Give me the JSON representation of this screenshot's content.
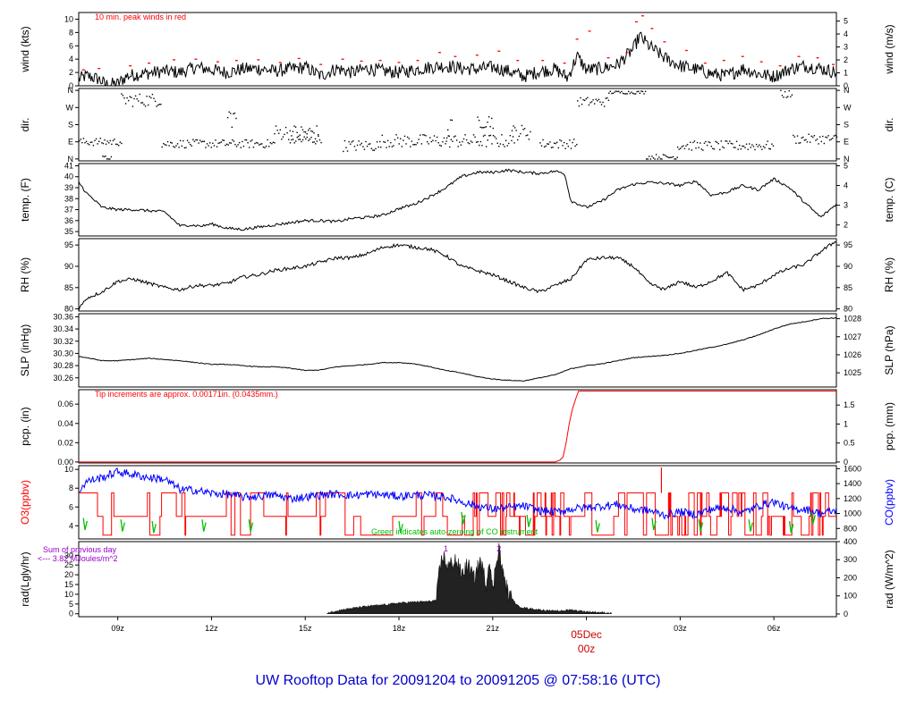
{
  "footer_title": "UW Rooftop Data for 20091204  to  20091205 @ 07:58:16  (UTC)",
  "colors": {
    "axis": "#000000",
    "peak": "#ff0000",
    "precip": "#ff0000",
    "o3": "#ff0000",
    "co": "#0000ff",
    "zero": "#00c000",
    "rad_note": "#9900cc",
    "footer": "#0000cc",
    "date_label": "#cc0000"
  },
  "chart_data": [
    {
      "type": "line",
      "name": "wind",
      "ylabel": "wind (kts)",
      "ylabel_right": "wind (m/s)",
      "ylim": [
        0,
        11
      ],
      "yticks": [
        0,
        2,
        4,
        6,
        8,
        10
      ],
      "yticks_right_values": [
        0,
        1,
        2,
        3,
        4,
        5
      ],
      "right_scale_factor": 1.9438,
      "annotation": "10 min. peak winds in red",
      "series_points": [
        [
          7.75,
          1.0
        ],
        [
          8.0,
          1.5
        ],
        [
          8.4,
          1.0
        ],
        [
          8.6,
          0.2
        ],
        [
          9.0,
          0.3
        ],
        [
          9.3,
          1.5
        ],
        [
          9.8,
          1.8
        ],
        [
          10.5,
          2.2
        ],
        [
          11.0,
          2.0
        ],
        [
          11.5,
          2.8
        ],
        [
          12.0,
          2.4
        ],
        [
          12.5,
          2.0
        ],
        [
          13.0,
          2.5
        ],
        [
          13.5,
          2.6
        ],
        [
          14.0,
          2.2
        ],
        [
          14.5,
          2.5
        ],
        [
          15.0,
          2.8
        ],
        [
          15.5,
          1.5
        ],
        [
          16.0,
          2.6
        ],
        [
          16.5,
          2.0
        ],
        [
          17.0,
          2.6
        ],
        [
          17.5,
          2.2
        ],
        [
          18.0,
          2.0
        ],
        [
          18.5,
          2.4
        ],
        [
          19.0,
          2.8
        ],
        [
          19.5,
          3.0
        ],
        [
          20.0,
          2.6
        ],
        [
          20.5,
          2.5
        ],
        [
          21.0,
          2.8
        ],
        [
          21.5,
          2.2
        ],
        [
          22.0,
          1.4
        ],
        [
          22.5,
          2.2
        ],
        [
          23.0,
          2.5
        ],
        [
          23.4,
          1.2
        ],
        [
          23.7,
          4.5
        ],
        [
          24.0,
          2.4
        ],
        [
          24.5,
          2.6
        ],
        [
          25.0,
          3.2
        ],
        [
          25.5,
          5.5
        ],
        [
          25.7,
          7.5
        ],
        [
          26.0,
          6.0
        ],
        [
          26.5,
          4.2
        ],
        [
          27.0,
          3.0
        ],
        [
          27.5,
          2.5
        ],
        [
          28.0,
          1.8
        ],
        [
          28.5,
          1.5
        ],
        [
          29.0,
          2.6
        ],
        [
          29.5,
          1.8
        ],
        [
          30.0,
          1.4
        ],
        [
          30.5,
          2.5
        ],
        [
          31.0,
          3.0
        ],
        [
          31.5,
          2.6
        ],
        [
          32.0,
          2.0
        ]
      ],
      "peak_points": [
        [
          7.9,
          2.4
        ],
        [
          8.4,
          2.6
        ],
        [
          9.4,
          3.0
        ],
        [
          10.0,
          3.4
        ],
        [
          10.8,
          3.9
        ],
        [
          11.5,
          4.0
        ],
        [
          12.2,
          3.6
        ],
        [
          12.8,
          3.8
        ],
        [
          13.5,
          3.9
        ],
        [
          14.2,
          3.5
        ],
        [
          14.8,
          4.1
        ],
        [
          15.5,
          3.2
        ],
        [
          16.2,
          4.0
        ],
        [
          16.8,
          3.7
        ],
        [
          17.4,
          3.8
        ],
        [
          18.0,
          3.5
        ],
        [
          18.6,
          3.8
        ],
        [
          19.3,
          5.0
        ],
        [
          19.8,
          4.4
        ],
        [
          20.5,
          4.6
        ],
        [
          21.2,
          5.2
        ],
        [
          21.8,
          3.8
        ],
        [
          22.6,
          3.8
        ],
        [
          23.3,
          3.4
        ],
        [
          23.7,
          7.0
        ],
        [
          24.1,
          8.2
        ],
        [
          24.7,
          4.2
        ],
        [
          25.3,
          5.0
        ],
        [
          25.6,
          9.6
        ],
        [
          25.8,
          10.5
        ],
        [
          26.1,
          8.6
        ],
        [
          26.5,
          6.6
        ],
        [
          27.2,
          5.3
        ],
        [
          27.8,
          3.4
        ],
        [
          28.4,
          3.8
        ],
        [
          29.0,
          4.4
        ],
        [
          29.6,
          3.6
        ],
        [
          30.2,
          3.0
        ],
        [
          30.8,
          4.4
        ],
        [
          31.4,
          4.2
        ],
        [
          31.9,
          3.2
        ]
      ]
    },
    {
      "type": "scatter",
      "name": "dir",
      "ylabel": "dir.",
      "ylabel_right": "dir.",
      "yticks_labels": [
        "N",
        "E",
        "S",
        "W",
        "N"
      ],
      "yticks_values": [
        0,
        90,
        180,
        270,
        360
      ],
      "ylim": [
        0,
        360
      ],
      "clusters": [
        [
          7.75,
          9.1,
          90,
          20
        ],
        [
          8.5,
          8.8,
          5,
          12
        ],
        [
          9.1,
          10.4,
          310,
          35
        ],
        [
          10.4,
          14.0,
          80,
          22
        ],
        [
          12.5,
          12.8,
          220,
          60
        ],
        [
          14.0,
          15.4,
          140,
          40
        ],
        [
          14.5,
          15.5,
          100,
          25
        ],
        [
          16.2,
          17.4,
          70,
          30
        ],
        [
          17.4,
          21.7,
          95,
          35
        ],
        [
          19.5,
          19.7,
          150,
          60
        ],
        [
          20.5,
          21.0,
          200,
          40
        ],
        [
          21.6,
          22.2,
          140,
          40
        ],
        [
          22.5,
          23.7,
          80,
          25
        ],
        [
          23.7,
          24.7,
          300,
          25
        ],
        [
          24.7,
          25.9,
          350,
          8
        ],
        [
          25.9,
          26.9,
          10,
          15
        ],
        [
          26.9,
          30.0,
          70,
          25
        ],
        [
          30.2,
          30.6,
          340,
          20
        ],
        [
          30.6,
          32.0,
          105,
          25
        ]
      ]
    },
    {
      "type": "line",
      "name": "temp",
      "ylabel": "temp. (F)",
      "ylabel_right": "temp. (C)",
      "ylim": [
        34.6,
        41.2
      ],
      "yticks": [
        35,
        36,
        37,
        38,
        39,
        40,
        41
      ],
      "yticks_right_values": [
        2,
        3,
        4,
        5
      ],
      "x": [
        7.75,
        8.0,
        8.5,
        9.0,
        9.5,
        10.0,
        10.5,
        11.0,
        11.3,
        11.7,
        12.0,
        12.5,
        13.0,
        13.5,
        14.0,
        14.5,
        15.0,
        15.5,
        16.0,
        16.5,
        17.0,
        17.5,
        18.0,
        18.5,
        19.0,
        19.5,
        20.0,
        20.5,
        21.0,
        21.5,
        22.0,
        22.5,
        23.0,
        23.3,
        23.5,
        24.0,
        24.5,
        25.0,
        25.5,
        26.0,
        26.5,
        27.0,
        27.5,
        28.0,
        28.5,
        29.0,
        29.5,
        30.0,
        30.5,
        31.0,
        31.5,
        32.0
      ],
      "y": [
        39.5,
        38.5,
        37.2,
        37.0,
        37.0,
        36.9,
        36.8,
        35.5,
        35.6,
        35.5,
        35.7,
        35.3,
        35.2,
        35.4,
        35.6,
        35.8,
        36.0,
        36.0,
        35.9,
        36.2,
        36.3,
        36.5,
        37.1,
        37.5,
        38.2,
        39.0,
        40.0,
        40.4,
        40.4,
        40.6,
        40.4,
        40.3,
        40.5,
        40.3,
        37.8,
        37.2,
        37.8,
        38.8,
        39.3,
        39.5,
        39.4,
        39.2,
        39.6,
        38.3,
        38.6,
        39.2,
        38.8,
        39.8,
        39.0,
        37.6,
        36.3,
        37.5
      ]
    },
    {
      "type": "line",
      "name": "rh",
      "ylabel": "RH (%)",
      "ylabel_right": "RH (%)",
      "ylim": [
        79.5,
        96.5
      ],
      "yticks": [
        80,
        85,
        90,
        95
      ],
      "yticks_right_values": [
        80,
        85,
        90,
        95
      ],
      "x": [
        7.75,
        8.0,
        8.5,
        9.0,
        9.5,
        10.0,
        10.5,
        11.0,
        11.5,
        12.0,
        12.5,
        13.0,
        13.5,
        14.0,
        14.5,
        15.0,
        15.5,
        16.0,
        16.5,
        17.0,
        17.5,
        18.0,
        18.5,
        19.0,
        19.5,
        20.0,
        20.5,
        21.0,
        21.5,
        22.0,
        22.5,
        23.0,
        23.5,
        24.0,
        24.5,
        25.0,
        25.5,
        26.0,
        26.5,
        27.0,
        27.5,
        28.0,
        28.5,
        29.0,
        29.5,
        30.0,
        30.5,
        31.0,
        31.5,
        32.0
      ],
      "y": [
        80.0,
        82.5,
        84.0,
        86.5,
        87.0,
        86.0,
        85.0,
        84.5,
        85.5,
        85.5,
        86.0,
        87.5,
        88.0,
        89.0,
        89.5,
        90.0,
        91.0,
        92.0,
        92.0,
        93.0,
        94.5,
        95.0,
        94.5,
        94.0,
        92.5,
        90.0,
        89.0,
        88.0,
        86.5,
        85.0,
        84.0,
        85.5,
        87.0,
        91.5,
        92.0,
        92.0,
        90.0,
        86.0,
        84.5,
        86.5,
        85.0,
        86.5,
        88.5,
        84.5,
        85.5,
        88.0,
        89.5,
        90.5,
        93.5,
        96.0
      ]
    },
    {
      "type": "line",
      "name": "slp",
      "ylabel": "SLP (inHg)",
      "ylabel_right": "SLP (hPa)",
      "ylim": [
        30.245,
        30.365
      ],
      "yticks": [
        30.26,
        30.28,
        30.3,
        30.32,
        30.34,
        30.36
      ],
      "yticks_right_values": [
        1025,
        1026,
        1027,
        1028
      ],
      "x": [
        7.75,
        8.0,
        8.5,
        9.0,
        9.5,
        10.0,
        10.5,
        11.0,
        11.5,
        12.0,
        12.5,
        13.0,
        13.5,
        14.0,
        14.5,
        15.0,
        15.5,
        16.0,
        16.5,
        17.0,
        17.5,
        18.0,
        18.5,
        19.0,
        19.5,
        20.0,
        20.5,
        21.0,
        21.5,
        22.0,
        22.5,
        23.0,
        23.5,
        24.0,
        24.5,
        25.0,
        25.5,
        26.0,
        26.5,
        27.0,
        27.5,
        28.0,
        28.5,
        29.0,
        29.5,
        30.0,
        30.5,
        31.0,
        31.5,
        32.0
      ],
      "y": [
        30.295,
        30.293,
        30.288,
        30.288,
        30.29,
        30.292,
        30.29,
        30.288,
        30.285,
        30.282,
        30.282,
        30.28,
        30.278,
        30.278,
        30.276,
        30.272,
        30.273,
        30.278,
        30.28,
        30.282,
        30.285,
        30.285,
        30.283,
        30.278,
        30.272,
        30.268,
        30.262,
        30.258,
        30.256,
        30.255,
        30.26,
        30.265,
        30.275,
        30.28,
        30.283,
        30.288,
        30.293,
        30.295,
        30.297,
        30.3,
        30.305,
        30.31,
        30.315,
        30.322,
        30.33,
        30.34,
        30.348,
        30.352,
        30.357,
        30.358
      ]
    },
    {
      "type": "line",
      "name": "pcp",
      "ylabel": "pcp. (in)",
      "ylabel_right": "pcp. (mm)",
      "ylim": [
        -0.001,
        0.075
      ],
      "yticks": [
        0,
        0.02,
        0.04,
        0.06
      ],
      "yticks_right_values": [
        0,
        0.5,
        1,
        1.5
      ],
      "annotation": "Tip increments are approx. 0.00171in. (0.0435mm.)",
      "x": [
        7.75,
        23.0,
        23.15,
        23.25,
        23.35,
        23.45,
        23.55,
        23.65,
        23.75,
        32.0
      ],
      "y": [
        0.0,
        0.0,
        0.002,
        0.005,
        0.02,
        0.04,
        0.055,
        0.065,
        0.0735,
        0.0735
      ]
    },
    {
      "type": "line",
      "name": "o3_co",
      "ylabel": "O3(ppbv)",
      "ylabel_right": "CO(ppbv)",
      "ylim": [
        2.6,
        10.4
      ],
      "yticks": [
        4,
        6,
        8,
        10
      ],
      "ylim_right": [
        660,
        1640
      ],
      "yticks_right_values": [
        800,
        1000,
        1200,
        1400,
        1600
      ],
      "annotation": "Green indicates auto-zeroing of CO instrument",
      "o3_levels": [
        3,
        5,
        7.5
      ],
      "o3_spike": [
        26.4,
        10.2
      ],
      "co_x": [
        7.75,
        8.0,
        8.5,
        9.0,
        9.5,
        10.0,
        10.5,
        11.0,
        11.5,
        12.0,
        12.5,
        13.0,
        13.5,
        14.0,
        14.5,
        15.0,
        15.5,
        16.0,
        16.5,
        17.0,
        17.5,
        18.0,
        18.5,
        19.0,
        19.5,
        20.0,
        20.5,
        21.0,
        21.5,
        22.0,
        22.5,
        23.0,
        23.5,
        24.0,
        24.5,
        25.0,
        25.5,
        26.0,
        26.5,
        27.0,
        27.5,
        28.0,
        28.5,
        29.0,
        29.5,
        30.0,
        30.5,
        31.0,
        31.5,
        32.0
      ],
      "co_y": [
        1300,
        1430,
        1480,
        1560,
        1520,
        1480,
        1460,
        1320,
        1310,
        1270,
        1260,
        1220,
        1230,
        1250,
        1200,
        1220,
        1250,
        1260,
        1240,
        1260,
        1250,
        1230,
        1250,
        1240,
        1220,
        1160,
        1100,
        1060,
        1080,
        1100,
        1040,
        1020,
        1060,
        1080,
        1100,
        1120,
        1060,
        1040,
        980,
        1020,
        990,
        1060,
        1080,
        1010,
        1100,
        1160,
        1060,
        1060,
        1000,
        1040
      ],
      "zero_points": [
        [
          7.9,
          780
        ],
        [
          9.1,
          760
        ],
        [
          10.1,
          740
        ],
        [
          11.7,
          760
        ],
        [
          13.2,
          760
        ],
        [
          18.0,
          740
        ],
        [
          20.0,
          860
        ],
        [
          22.1,
          820
        ],
        [
          24.3,
          750
        ],
        [
          26.1,
          780
        ],
        [
          27.6,
          760
        ],
        [
          29.2,
          760
        ],
        [
          30.5,
          740
        ],
        [
          31.2,
          860
        ]
      ]
    },
    {
      "type": "area",
      "name": "rad",
      "ylabel": "rad(Lgly/hr)",
      "ylabel_right": "rad (W/m^2)",
      "ylim": [
        -1.5,
        37
      ],
      "yticks": [
        0,
        5,
        10,
        15,
        20,
        25,
        30
      ],
      "ylim_right": [
        -15,
        400
      ],
      "yticks_right_values": [
        0,
        100,
        200,
        300,
        400
      ],
      "note_line1": "Sum of previous day",
      "note_line2": "<--- 3.82 MJoules/m^2",
      "markers": [
        [
          19.5,
          "1"
        ],
        [
          21.2,
          "2"
        ]
      ],
      "x": [
        15.7,
        16.0,
        16.5,
        17.0,
        17.5,
        18.0,
        18.5,
        19.0,
        19.2,
        19.3,
        19.4,
        19.5,
        19.6,
        19.8,
        20.0,
        20.2,
        20.4,
        20.6,
        20.8,
        20.9,
        21.0,
        21.1,
        21.2,
        21.3,
        21.5,
        21.8,
        22.0,
        22.5,
        23.0,
        23.5,
        24.0,
        24.5,
        24.8
      ],
      "y": [
        0.3,
        1.5,
        2.8,
        3.8,
        4.5,
        5.5,
        6.0,
        6.3,
        7.0,
        22.0,
        30.0,
        26.0,
        24.0,
        28.0,
        20.0,
        25.0,
        18.0,
        27.0,
        15.0,
        30.0,
        10.0,
        26.0,
        35.0,
        22.0,
        10.0,
        4.0,
        3.0,
        2.0,
        1.2,
        2.0,
        1.0,
        0.6,
        0.2
      ]
    }
  ],
  "x_axis": {
    "xlim": [
      7.75,
      32.0
    ],
    "ticks": [
      {
        "x": 9,
        "label": "09z"
      },
      {
        "x": 12,
        "label": "12z"
      },
      {
        "x": 15,
        "label": "15z"
      },
      {
        "x": 18,
        "label": "18z"
      },
      {
        "x": 21,
        "label": "21z"
      },
      {
        "x": 24,
        "label": ""
      },
      {
        "x": 27,
        "label": "03z"
      },
      {
        "x": 30,
        "label": "06z"
      }
    ],
    "date_label_line1": "05Dec",
    "date_label_line2": "00z"
  }
}
